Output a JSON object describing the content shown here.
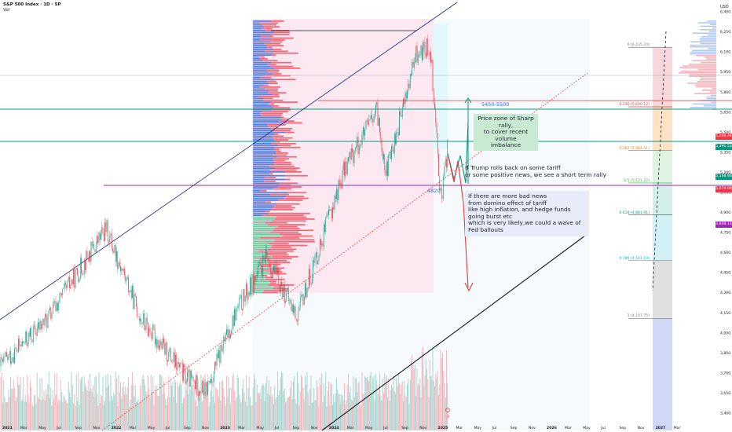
{
  "header": {
    "title": "S&P 500 Index · 1D · SP",
    "sub": "Vol"
  },
  "annotations": {
    "rally_zone": "Price zone of Sharp rally,\nto cover recent volume\nimbalance",
    "trump": "If Trump rolls back on some tariff\nor some positive news, we see a short term rally",
    "bad_news": "If there are more bad news\nfrom domino effect of tariff\nlike high inflation, and hedge funds going burst etc\nwhich is very likely,we could a wave of Fed ballouts",
    "zone_label": "5450-5500",
    "level_label": "4820"
  },
  "currency": "USD",
  "fib_levels": [
    {
      "ratio": "0 (6,135.24)",
      "price": 6135,
      "color": "#787b86"
    },
    {
      "ratio": "0.236 (5,690.12)",
      "price": 5690,
      "color": "#f23645"
    },
    {
      "ratio": "0.382 (5,364.51)",
      "price": 5364,
      "color": "#f57c00"
    },
    {
      "ratio": "0.5 (5,121.22)",
      "price": 5121,
      "color": "#4caf50"
    },
    {
      "ratio": "0.618 (4,881.91)",
      "price": 4882,
      "color": "#089981"
    },
    {
      "ratio": "0.786 (4,541.19)",
      "price": 4541,
      "color": "#00bcd4"
    },
    {
      "ratio": "1 (4,107.75)",
      "price": 4108,
      "color": "#787b86"
    }
  ],
  "price_tags": [
    {
      "text": "5,466.39",
      "price": 5466,
      "color": "#f23645"
    },
    {
      "text": "5,391.53",
      "price": 5392,
      "color": "#089981"
    },
    {
      "text": "5,168.90",
      "price": 5169,
      "color": "#089981"
    },
    {
      "text": "5,074.09",
      "price": 5074,
      "color": "#f23645"
    },
    {
      "text": "4,808.13",
      "price": 4808,
      "color": "#9c27b0"
    }
  ],
  "colors": {
    "up": "#089981",
    "down": "#f23645",
    "zone_pink": "#fce4ec",
    "zone_cyan": "#e0f7fa",
    "channel_line": "#1a237e",
    "purple_line": "#9c27b0",
    "teal_line": "#089981",
    "red_line": "#e53935",
    "volume_up": "#a5d6cf",
    "volume_down": "#f7b7bd"
  },
  "chart_data": {
    "type": "candlestick",
    "title": "S&P 500 Index · 1D · SP",
    "y_axis_ticks": [
      6400,
      6250,
      6100,
      5950,
      5800,
      5650,
      5500,
      5350,
      5200,
      5050,
      4900,
      4750,
      4600,
      4450,
      4300,
      4150,
      4000,
      3850,
      3700,
      3550,
      3400
    ],
    "x_axis_ticks": [
      "2021",
      "Mar",
      "May",
      "Jul",
      "Sep",
      "Nov",
      "2022",
      "Mar",
      "May",
      "Jul",
      "Sep",
      "Nov",
      "2023",
      "Mar",
      "May",
      "Jul",
      "Sep",
      "Nov",
      "2024",
      "Mar",
      "May",
      "Jul",
      "Sep",
      "Nov",
      "2025",
      "Mar",
      "May",
      "Jul",
      "Sep",
      "Nov",
      "2026",
      "Mar",
      "May",
      "Jul",
      "Sep",
      "Nov",
      "2027",
      "Mar"
    ],
    "ylim": [
      3350,
      6500
    ],
    "key_levels": [
      5500,
      5450,
      5169,
      4820
    ],
    "price_path": [
      {
        "t": "2021-01",
        "price": 3750
      },
      {
        "t": "2021-06",
        "price": 4250
      },
      {
        "t": "2022-01",
        "price": 4800
      },
      {
        "t": "2022-06",
        "price": 3700
      },
      {
        "t": "2022-10",
        "price": 3550
      },
      {
        "t": "2023-02",
        "price": 4150
      },
      {
        "t": "2023-07",
        "price": 4580
      },
      {
        "t": "2023-10",
        "price": 4120
      },
      {
        "t": "2024-03",
        "price": 5250
      },
      {
        "t": "2024-07",
        "price": 5650
      },
      {
        "t": "2024-08",
        "price": 5200
      },
      {
        "t": "2024-12",
        "price": 6100
      },
      {
        "t": "2025-02",
        "price": 6140
      },
      {
        "t": "2025-04",
        "price": 4950
      },
      {
        "t": "2025-04b",
        "price": 5400
      }
    ]
  }
}
